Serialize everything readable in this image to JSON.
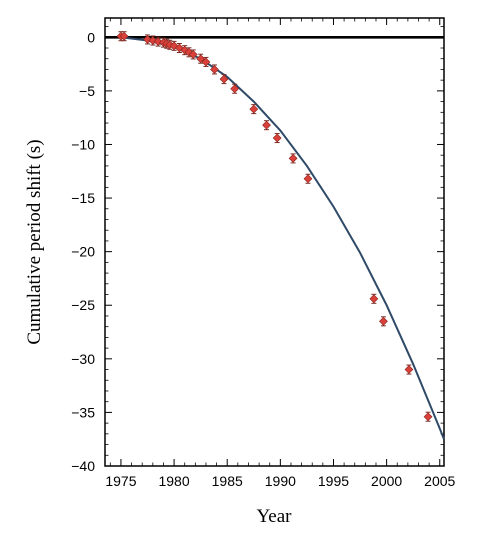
{
  "chart_data": {
    "type": "scatter",
    "title": "",
    "xlabel": "Year",
    "ylabel": "Cumulative period shift (s)",
    "xlim": [
      1973.5,
      2005.4
    ],
    "ylim": [
      -40,
      1.8
    ],
    "xticks": [
      1975,
      1980,
      1985,
      1990,
      1995,
      2000,
      2005
    ],
    "yticks": [
      0,
      -5,
      -10,
      -15,
      -20,
      -25,
      -30,
      -35,
      -40
    ],
    "grid": false,
    "legend": "none",
    "colors": {
      "points": "#d9403a",
      "curve": "#2f4a68",
      "zero_line": "#000000"
    },
    "series": [
      {
        "kind": "points",
        "x": [
          1975.0,
          1975.3,
          1977.5,
          1978.0,
          1978.5,
          1979.0,
          1979.3,
          1979.6,
          1980.0,
          1980.5,
          1981.0,
          1981.4,
          1981.8,
          1982.5,
          1983.0,
          1983.8,
          1984.7,
          1985.7,
          1987.5,
          1988.7,
          1989.7,
          1991.2,
          1992.6,
          1998.8,
          1999.7,
          2002.1,
          2003.9
        ],
        "y": [
          0.1,
          0.1,
          -0.2,
          -0.3,
          -0.4,
          -0.5,
          -0.6,
          -0.7,
          -0.8,
          -1.0,
          -1.2,
          -1.4,
          -1.6,
          -2.0,
          -2.3,
          -3.0,
          -3.9,
          -4.8,
          -6.7,
          -8.2,
          -9.4,
          -11.3,
          -13.2,
          -24.4,
          -26.5,
          -31.0,
          -35.4
        ]
      },
      {
        "kind": "curve",
        "x": [
          1975.0,
          1977.5,
          1980.0,
          1982.5,
          1985.0,
          1987.5,
          1990.0,
          1992.5,
          1995.0,
          1997.5,
          2000.0,
          2002.5,
          2005.0,
          2005.4
        ],
        "y": [
          0.0,
          -0.3,
          -0.9,
          -2.0,
          -3.7,
          -6.0,
          -8.7,
          -12.0,
          -15.8,
          -20.1,
          -25.0,
          -30.5,
          -36.5,
          -37.5
        ]
      }
    ]
  }
}
